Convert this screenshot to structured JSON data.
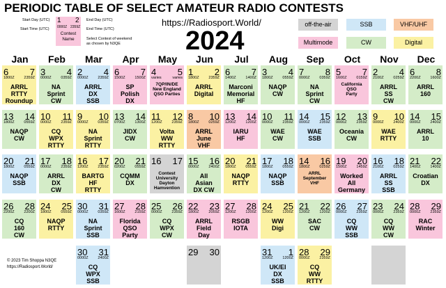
{
  "header": {
    "title": "PERIODIC TABLE OF SELECT AMATEUR RADIO CONTESTS",
    "url": "https://Radiosport.World/",
    "year": "2024"
  },
  "key": {
    "start_day": "1",
    "end_day": "2",
    "start_time": "0000Z",
    "end_time": "2359Z",
    "name": [
      "Contest",
      "Name"
    ],
    "labels": {
      "start_day": "Start Day (UTC)",
      "start_time": "Start Time (UTC)",
      "end_day": "End Day (UTC)",
      "end_time": "End Time (UTC)",
      "name": [
        "Select Contest of weekend",
        "as chosen by N3QE"
      ]
    }
  },
  "legend": [
    {
      "name": "off-the-air",
      "color": "#d4d4d4"
    },
    {
      "name": "SSB",
      "color": "#cfe7f7"
    },
    {
      "name": "VHF/UHF",
      "color": "#f9c9a4"
    },
    {
      "name": "Multimode",
      "color": "#f9c6dc"
    },
    {
      "name": "CW",
      "color": "#d4ecc8"
    },
    {
      "name": "Digital",
      "color": "#fbf1a3"
    }
  ],
  "footer": [
    "© 2023 Tim Shoppa N3QE",
    "https://Radiosport.World/"
  ],
  "months": [
    {
      "name": "Jan",
      "weeks": [
        {
          "start": "6",
          "end": "7",
          "start_time": "1800Z",
          "end_time": "2359Z",
          "name": [
            "ARRL",
            "RTTY",
            "Roundup"
          ],
          "kind": "Digital"
        },
        {
          "start": "13",
          "end": "14",
          "start_time": "1800Z",
          "end_time": "0559Z",
          "name": [
            "NAQP",
            "CW"
          ],
          "kind": "CW"
        },
        {
          "start": "20",
          "end": "21",
          "start_time": "1800Z",
          "end_time": "0559Z",
          "name": [
            "NAQP",
            "SSB"
          ],
          "kind": "SSB"
        },
        {
          "start": "26",
          "end": "28",
          "start_time": "2200Z",
          "end_time": "2200Z",
          "name": [
            "CQ",
            "160",
            "CW"
          ],
          "kind": "CW"
        },
        null
      ]
    },
    {
      "name": "Feb",
      "weeks": [
        {
          "start": "3",
          "end": "4",
          "start_time": "0000Z",
          "end_time": "0359Z",
          "name": [
            "NA",
            "Sprint",
            "CW"
          ],
          "kind": "CW"
        },
        {
          "start": "10",
          "end": "11",
          "start_time": "0000Z",
          "end_time": "2359Z",
          "name": [
            "CQ",
            "WPX",
            "RTTY"
          ],
          "kind": "Digital"
        },
        {
          "start": "17",
          "end": "18",
          "start_time": "0000Z",
          "end_time": "2359Z",
          "name": [
            "ARRL",
            "DX",
            "CW"
          ],
          "kind": "CW"
        },
        {
          "start": "24",
          "end": "25",
          "start_time": "1800Z",
          "end_time": "0559Z",
          "name": [
            "NAQP",
            "RTTY"
          ],
          "kind": "Digital"
        },
        null
      ]
    },
    {
      "name": "Mar",
      "weeks": [
        {
          "start": "2",
          "end": "4",
          "start_time": "0000Z",
          "end_time": "2359Z",
          "name": [
            "ARRL",
            "DX",
            "SSB"
          ],
          "kind": "SSB"
        },
        {
          "start": "9",
          "end": "10",
          "start_time": "0000Z",
          "end_time": "0359Z",
          "name": [
            "NA",
            "Sprint",
            "RTTY"
          ],
          "kind": "Digital"
        },
        {
          "start": "16",
          "end": "17",
          "start_time": "1200Z",
          "end_time": "2359Z",
          "name": [
            "BARTG",
            "HF",
            "RTTY"
          ],
          "kind": "Digital"
        },
        {
          "start": "30",
          "end": "31",
          "start_time": "0000Z",
          "end_time": "0359Z",
          "name": [
            "NA",
            "Sprint",
            "SSB"
          ],
          "kind": "SSB"
        },
        {
          "start": "30",
          "end": "31",
          "start_time": "0000Z",
          "end_time": "2400Z",
          "name": [
            "CQ",
            "WPX",
            "SSB"
          ],
          "kind": "SSB"
        }
      ]
    },
    {
      "name": "Apr",
      "weeks": [
        {
          "start": "6",
          "end": "7",
          "start_time": "1500Z",
          "end_time": "1500Z",
          "name": [
            "SP",
            "Polish",
            "DX"
          ],
          "kind": "Multimode"
        },
        {
          "start": "13",
          "end": "14",
          "start_time": "0700Z",
          "end_time": "1300Z",
          "name": [
            "JIDX",
            "CW"
          ],
          "kind": "CW"
        },
        {
          "start": "20",
          "end": "21",
          "start_time": "0200Z",
          "end_time": "0559Z",
          "name": [
            "CQMM",
            "DX"
          ],
          "kind": "CW"
        },
        {
          "start": "27",
          "end": "28",
          "start_time": "1600Z",
          "end_time": "2159Z",
          "name": [
            "Florida",
            "QSO",
            "Party"
          ],
          "kind": "Multimode"
        },
        null
      ]
    },
    {
      "name": "May",
      "weeks": [
        {
          "start": "4",
          "end": "5",
          "start_time": "varies",
          "end_time": "varies",
          "name": [
            "7QP/IN/DE",
            "New England",
            "QSO Parties"
          ],
          "kind": "Multimode"
        },
        {
          "start": "11",
          "end": "12",
          "start_time": "1200Z",
          "end_time": "2359Z",
          "name": [
            "Volta",
            "WW",
            "RTTY"
          ],
          "kind": "Digital"
        },
        {
          "start": "16",
          "end": "17",
          "name": [
            "Contest",
            "University",
            "Dayton",
            "Hamvention"
          ],
          "kind": "off-the-air"
        },
        {
          "start": "25",
          "end": "26",
          "start_time": "0000Z",
          "end_time": "2359Z",
          "name": [
            "CQ",
            "WPX",
            "CW"
          ],
          "kind": "CW"
        },
        null
      ]
    },
    {
      "name": "Jun",
      "weeks": [
        {
          "start": "1",
          "end": "2",
          "start_time": "1800Z",
          "end_time": "2359Z",
          "name": [
            "ARRL",
            "Digital"
          ],
          "kind": "Digital"
        },
        {
          "start": "8",
          "end": "10",
          "start_time": "1800Z",
          "end_time": "0259Z",
          "name": [
            "ARRL",
            "June",
            "VHF"
          ],
          "kind": "VHF/UHF"
        },
        {
          "start": "15",
          "end": "16",
          "start_time": "0000Z",
          "end_time": "2400Z",
          "name": [
            "All",
            "Asian",
            "DX CW"
          ],
          "kind": "CW"
        },
        {
          "start": "22",
          "end": "23",
          "start_time": "1800Z",
          "end_time": "2059Z",
          "name": [
            "ARRL",
            "Field",
            "Day"
          ],
          "kind": "Multimode"
        },
        {
          "start": "29",
          "end": "30",
          "kind": "off-the-air"
        }
      ]
    },
    {
      "name": "Jul",
      "weeks": [
        {
          "start": "6",
          "end": "7",
          "start_time": "1400Z",
          "end_time": "1400Z",
          "name": [
            "Marconi",
            "Memorial",
            "HF"
          ],
          "kind": "CW"
        },
        {
          "start": "13",
          "end": "14",
          "start_time": "1200Z",
          "end_time": "1200Z",
          "name": [
            "IARU",
            "HF"
          ],
          "kind": "Multimode"
        },
        {
          "start": "20",
          "end": "21",
          "start_time": "1800Z",
          "end_time": "0559Z",
          "name": [
            "NAQP",
            "RTTY"
          ],
          "kind": "Digital"
        },
        {
          "start": "27",
          "end": "28",
          "start_time": "1200Z",
          "end_time": "1200Z",
          "name": [
            "RSGB",
            "IOTA"
          ],
          "kind": "Multimode"
        },
        null
      ]
    },
    {
      "name": "Aug",
      "weeks": [
        {
          "start": "3",
          "end": "4",
          "start_time": "1800Z",
          "end_time": "0559Z",
          "name": [
            "NAQP",
            "CW"
          ],
          "kind": "CW"
        },
        {
          "start": "10",
          "end": "11",
          "start_time": "0000Z",
          "end_time": "2359Z",
          "name": [
            "WAE",
            "CW"
          ],
          "kind": "CW"
        },
        {
          "start": "17",
          "end": "18",
          "start_time": "1800Z",
          "end_time": "0559Z",
          "name": [
            "NAQP",
            "SSB"
          ],
          "kind": "SSB"
        },
        {
          "start": "24",
          "end": "25",
          "start_time": "1200Z",
          "end_time": "1200Z",
          "name": [
            "WW",
            "Digi"
          ],
          "kind": "Digital"
        },
        {
          "start": "31",
          "end": "1",
          "start_time": "1200Z",
          "end_time": "1200Z",
          "name": [
            "UK/EI",
            "DX",
            "SSB"
          ],
          "kind": "SSB"
        }
      ]
    },
    {
      "name": "Sep",
      "weeks": [
        {
          "start": "7",
          "end": "8",
          "start_time": "0000Z",
          "end_time": "0359Z",
          "name": [
            "NA",
            "Sprint",
            "CW"
          ],
          "kind": "CW"
        },
        {
          "start": "14",
          "end": "15",
          "start_time": "0000Z",
          "end_time": "2359Z",
          "name": [
            "WAE",
            "SSB"
          ],
          "kind": "SSB"
        },
        {
          "start": "14",
          "end": "16",
          "start_time": "1800Z",
          "end_time": "0259Z",
          "name": [
            "ARRL",
            "September",
            "VHF"
          ],
          "kind": "VHF/UHF"
        },
        {
          "start": "21",
          "end": "22",
          "start_time": "1200Z",
          "end_time": "1200Z",
          "name": [
            "SAC",
            "CW"
          ],
          "kind": "CW"
        },
        {
          "start": "28",
          "end": "29",
          "start_time": "0000Z",
          "end_time": "2359Z",
          "name": [
            "CQ",
            "WW",
            "RTTY"
          ],
          "kind": "Digital"
        }
      ]
    },
    {
      "name": "Oct",
      "weeks": [
        {
          "start": "5",
          "end": "7",
          "start_time": "1600Z",
          "end_time": "0159Z",
          "name": [
            "California",
            "QSO",
            "Party"
          ],
          "kind": "Multimode"
        },
        {
          "start": "12",
          "end": "13",
          "start_time": "0000Z",
          "end_time": "2359Z",
          "name": [
            "Oceania",
            "CW"
          ],
          "kind": "CW"
        },
        {
          "start": "19",
          "end": "20",
          "start_time": "1500Z",
          "end_time": "1459Z",
          "name": [
            "Worked",
            "All",
            "Germany"
          ],
          "kind": "Multimode"
        },
        {
          "start": "26",
          "end": "27",
          "start_time": "0000Z",
          "end_time": "2359Z",
          "name": [
            "CQ",
            "WW",
            "SSB"
          ],
          "kind": "SSB"
        },
        null
      ]
    },
    {
      "name": "Nov",
      "weeks": [
        {
          "start": "2",
          "end": "4",
          "start_time": "2100Z",
          "end_time": "0259Z",
          "name": [
            "ARRL",
            "SS",
            "CW"
          ],
          "kind": "CW"
        },
        {
          "start": "9",
          "end": "10",
          "start_time": "0000Z",
          "end_time": "2400Z",
          "name": [
            "WAE",
            "RTTY"
          ],
          "kind": "Digital"
        },
        {
          "start": "16",
          "end": "18",
          "start_time": "2100Z",
          "end_time": "0259Z",
          "name": [
            "ARRL",
            "SS",
            "SSB"
          ],
          "kind": "SSB"
        },
        {
          "start": "23",
          "end": "24",
          "start_time": "0000Z",
          "end_time": "2359Z",
          "name": [
            "CQ",
            "WW",
            "CW"
          ],
          "kind": "CW"
        },
        {
          "kind": "off-the-air"
        }
      ]
    },
    {
      "name": "Dec",
      "weeks": [
        {
          "start": "6",
          "end": "8",
          "start_time": "2200Z",
          "end_time": "1600Z",
          "name": [
            "ARRL",
            "160"
          ],
          "kind": "CW"
        },
        {
          "start": "14",
          "end": "15",
          "start_time": "0000Z",
          "end_time": "2400Z",
          "name": [
            "ARRL",
            "10"
          ],
          "kind": "CW"
        },
        {
          "start": "21",
          "end": "22",
          "start_time": "1400Z",
          "end_time": "1400Z",
          "name": [
            "Croatian",
            "DX"
          ],
          "kind": "CW"
        },
        {
          "start": "28",
          "end": "29",
          "start_time": "0000Z",
          "end_time": "2359Z",
          "name": [
            "RAC",
            "Winter"
          ],
          "kind": "Multimode"
        },
        null
      ]
    }
  ]
}
